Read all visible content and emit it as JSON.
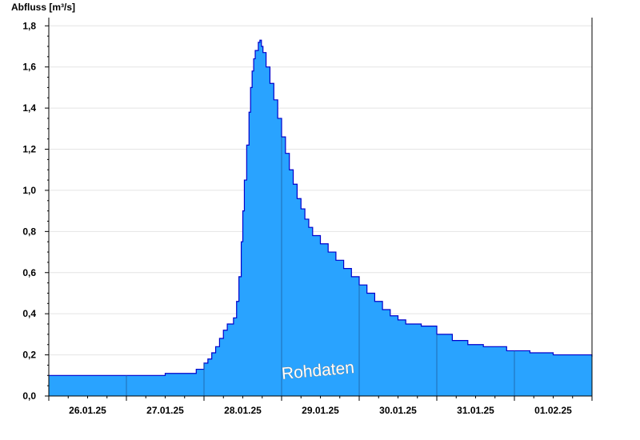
{
  "chart_data": {
    "type": "area",
    "ylabel": "Abfluss [m³/s]",
    "xlabel": "",
    "title": "",
    "ylim": [
      0,
      1.84
    ],
    "yticks": [
      0.0,
      0.2,
      0.4,
      0.6,
      0.8,
      1.0,
      1.2,
      1.4,
      1.6,
      1.8
    ],
    "ytick_labels": [
      "0,0",
      "0,2",
      "0,4",
      "0,6",
      "0,8",
      "1,0",
      "1,2",
      "1,4",
      "1,6",
      "1,8"
    ],
    "xlim": [
      0,
      7
    ],
    "x_unit": "days from 26.01.25 00:00",
    "xtick_labels": [
      "26.01.25",
      "27.01.25",
      "28.01.25",
      "29.01.25",
      "30.01.25",
      "31.01.25",
      "01.02.25"
    ],
    "grid": true,
    "fill_color": "#29a3ff",
    "line_color": "#0000cc",
    "annotation": "Rohdaten",
    "series": [
      {
        "values": [
          [
            0.0,
            0.1
          ],
          [
            1.5,
            0.11
          ],
          [
            1.9,
            0.13
          ],
          [
            2.0,
            0.16
          ],
          [
            2.05,
            0.18
          ],
          [
            2.1,
            0.21
          ],
          [
            2.15,
            0.24
          ],
          [
            2.2,
            0.28
          ],
          [
            2.25,
            0.32
          ],
          [
            2.3,
            0.35
          ],
          [
            2.38,
            0.38
          ],
          [
            2.42,
            0.46
          ],
          [
            2.45,
            0.58
          ],
          [
            2.48,
            0.75
          ],
          [
            2.5,
            0.9
          ],
          [
            2.52,
            1.05
          ],
          [
            2.55,
            1.22
          ],
          [
            2.58,
            1.38
          ],
          [
            2.6,
            1.5
          ],
          [
            2.62,
            1.58
          ],
          [
            2.64,
            1.64
          ],
          [
            2.66,
            1.68
          ],
          [
            2.7,
            1.72
          ],
          [
            2.72,
            1.73
          ],
          [
            2.74,
            1.7
          ],
          [
            2.76,
            1.67
          ],
          [
            2.8,
            1.6
          ],
          [
            2.85,
            1.52
          ],
          [
            2.9,
            1.44
          ],
          [
            2.95,
            1.35
          ],
          [
            3.0,
            1.26
          ],
          [
            3.05,
            1.18
          ],
          [
            3.1,
            1.1
          ],
          [
            3.15,
            1.03
          ],
          [
            3.2,
            0.96
          ],
          [
            3.25,
            0.91
          ],
          [
            3.3,
            0.86
          ],
          [
            3.35,
            0.82
          ],
          [
            3.4,
            0.78
          ],
          [
            3.5,
            0.74
          ],
          [
            3.6,
            0.7
          ],
          [
            3.7,
            0.66
          ],
          [
            3.8,
            0.62
          ],
          [
            3.9,
            0.58
          ],
          [
            4.0,
            0.54
          ],
          [
            4.1,
            0.5
          ],
          [
            4.2,
            0.46
          ],
          [
            4.3,
            0.42
          ],
          [
            4.4,
            0.39
          ],
          [
            4.5,
            0.37
          ],
          [
            4.6,
            0.35
          ],
          [
            4.8,
            0.34
          ],
          [
            5.0,
            0.3
          ],
          [
            5.2,
            0.27
          ],
          [
            5.4,
            0.25
          ],
          [
            5.6,
            0.24
          ],
          [
            5.9,
            0.22
          ],
          [
            6.2,
            0.21
          ],
          [
            6.5,
            0.2
          ],
          [
            7.0,
            0.19
          ]
        ]
      }
    ]
  }
}
